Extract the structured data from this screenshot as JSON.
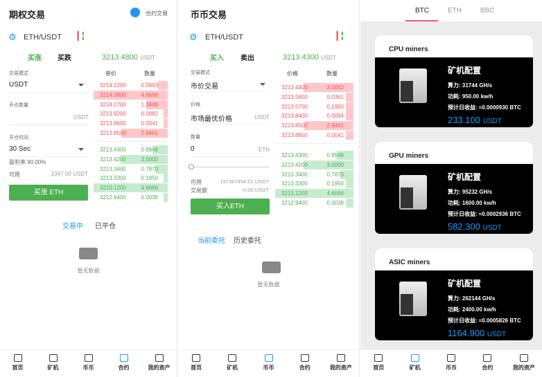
{
  "colors": {
    "ask": "#f0505a",
    "ask_bar": "#ffc7c9",
    "bid": "#4caf50",
    "bid_bar": "#c8ebd0",
    "accent": "#2196f3",
    "button": "#4caf50"
  },
  "options": {
    "title": "期权交易",
    "switch_label": "合约交易",
    "pair": "ETH/USDT",
    "tab_up": "买涨",
    "tab_down": "买跌",
    "price": "3213.4800",
    "price_unit": "USDT",
    "mode_label": "交易模式",
    "mode_value": "USDT",
    "amount_label": "开仓数量",
    "amount_unit": "USDT",
    "time_label": "开仓时间",
    "time_value": "30 Sec",
    "profit_rate": "盈利率 90.00%",
    "avail_label": "可用",
    "avail_value": "2347.00",
    "avail_unit": "USDT",
    "buy_button": "买涨 ETH",
    "col_price": "单价",
    "col_qty": "数量",
    "asks": [
      {
        "p": "3214.2200",
        "q": "0.0993",
        "d": 0.13
      },
      {
        "p": "3214.0800",
        "q": "4.6666",
        "d": 1
      },
      {
        "p": "3214.0700",
        "q": "1.3449",
        "d": 0.29
      },
      {
        "p": "3213.9200",
        "q": "0.0082",
        "d": 0.06
      },
      {
        "p": "3213.8600",
        "q": "0.0041",
        "d": 0.06
      },
      {
        "p": "3213.8500",
        "q": "2.9461",
        "d": 0.63
      }
    ],
    "bids": [
      {
        "p": "3213.4300",
        "q": "0.9948",
        "d": 0.21
      },
      {
        "p": "3213.4200",
        "q": "3.0000",
        "d": 0.64
      },
      {
        "p": "3213.3400",
        "q": "0.7870",
        "d": 0.17
      },
      {
        "p": "3213.3300",
        "q": "0.1950",
        "d": 0.06
      },
      {
        "p": "3213.1200",
        "q": "4.6666",
        "d": 1
      },
      {
        "p": "3212.9400",
        "q": "0.0038",
        "d": 0.06
      }
    ],
    "tab_active": "交易中",
    "tab_closed": "已平仓",
    "empty": "暂无数据"
  },
  "spot": {
    "title": "币币交易",
    "pair": "ETH/USDT",
    "tab_buy": "买入",
    "tab_sell": "卖出",
    "price": "3213.4300",
    "price_unit": "USDT",
    "mode_label": "交易模式",
    "mode_value": "市价交易",
    "price_label": "价格",
    "price_value": "市场最优价格",
    "price_field_unit": "USDT",
    "qty_label": "数量",
    "qty_value": "0",
    "qty_unit": "ETH",
    "slider_percent": 0,
    "avail_label": "可用",
    "avail_value": "197367454.51 USDT",
    "turnover_label": "交易额",
    "turnover_value": "0.00 USDT",
    "buy_button": "买入ETH",
    "col_price": "价格",
    "col_qty": "数量",
    "asks": [
      {
        "p": "3213.4400",
        "q": "3.0052",
        "d": 0.64
      },
      {
        "p": "3213.5600",
        "q": "0.0361",
        "d": 0.1
      },
      {
        "p": "3213.5700",
        "q": "0.1950",
        "d": 0.1
      },
      {
        "p": "3213.8400",
        "q": "0.0094",
        "d": 0.1
      },
      {
        "p": "3213.8500",
        "q": "2.9461",
        "d": 0.63
      },
      {
        "p": "3213.8600",
        "q": "0.0041",
        "d": 0.1
      }
    ],
    "bids": [
      {
        "p": "3213.4300",
        "q": "0.9948",
        "d": 0.21
      },
      {
        "p": "3213.4200",
        "q": "3.0000",
        "d": 0.64
      },
      {
        "p": "3213.3400",
        "q": "0.7870",
        "d": 0.17
      },
      {
        "p": "3213.3300",
        "q": "0.1950",
        "d": 0.1
      },
      {
        "p": "3213.1200",
        "q": "4.6666",
        "d": 1
      },
      {
        "p": "3212.9400",
        "q": "0.0038",
        "d": 0.1
      }
    ],
    "tab_current": "当前委托",
    "tab_history": "历史委托",
    "empty": "暂无数据"
  },
  "miners": {
    "tabs": [
      "BTC",
      "ETH",
      "BBC"
    ],
    "config_title": "矿机配置",
    "cards": [
      {
        "name": "CPU miners",
        "hash": "算力: 31744 GH/s",
        "power": "功耗: 950.00 kw/h",
        "income": "预计日收益: ≈0.0000930 BTC",
        "price": "233.100",
        "unit": "USDT"
      },
      {
        "name": "GPU miners",
        "hash": "算力: 95232 GH/s",
        "power": "功耗: 1600.00 kw/h",
        "income": "预计日收益: ≈0.0002936 BTC",
        "price": "582.300",
        "unit": "USDT"
      },
      {
        "name": "ASIC miners",
        "hash": "算力: 262144 GH/s",
        "power": "功耗: 2400.00 kw/h",
        "income": "预计日收益: ≈0.0005826 BTC",
        "price": "1164.900",
        "unit": "USDT"
      }
    ]
  },
  "nav": [
    "首页",
    "矿机",
    "币币",
    "合约",
    "我的资产"
  ]
}
